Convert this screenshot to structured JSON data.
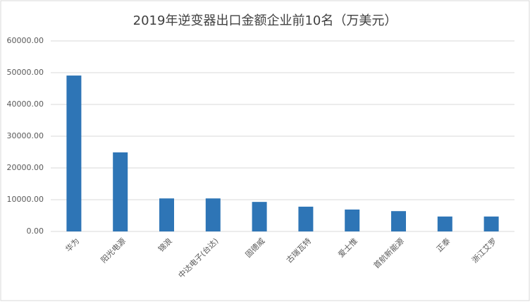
{
  "chart_data": {
    "type": "bar",
    "title": "2019年逆变器出口金额企业前10名（万美元）",
    "categories": [
      "华为",
      "阳光电源",
      "锦浪",
      "中达电子(台达)",
      "固德威",
      "古瑞瓦特",
      "爱士惟",
      "首航新能源",
      "正泰",
      "浙江艾罗"
    ],
    "values": [
      49100,
      24900,
      10400,
      10400,
      9300,
      7800,
      6900,
      6400,
      4700,
      4700
    ],
    "color": "#2e75b6",
    "ylim": [
      0,
      60000
    ],
    "yticks": [
      {
        "value": 0,
        "label": "0.00"
      },
      {
        "value": 10000,
        "label": "10000.00"
      },
      {
        "value": 20000,
        "label": "20000.00"
      },
      {
        "value": 30000,
        "label": "30000.00"
      },
      {
        "value": 40000,
        "label": "40000.00"
      },
      {
        "value": 50000,
        "label": "50000.00"
      },
      {
        "value": 60000,
        "label": "60000.00"
      }
    ],
    "grid": true
  }
}
